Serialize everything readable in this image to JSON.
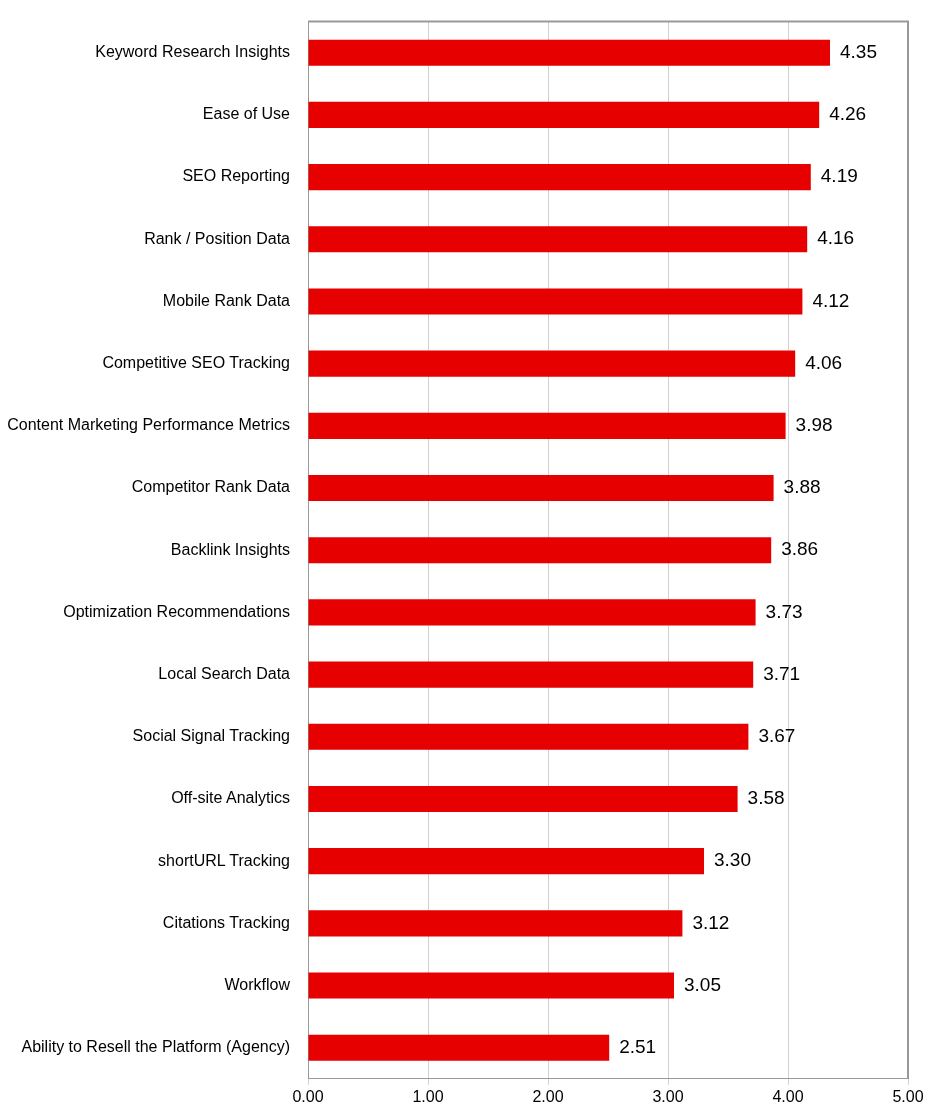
{
  "chart_data": {
    "type": "bar",
    "orientation": "horizontal",
    "categories": [
      "Keyword Research Insights",
      "Ease of Use",
      "SEO Reporting",
      "Rank / Position Data",
      "Mobile Rank Data",
      "Competitive SEO Tracking",
      "Content Marketing Performance Metrics",
      "Competitor Rank Data",
      "Backlink Insights",
      "Optimization Recommendations",
      "Local Search Data",
      "Social Signal Tracking",
      "Off-site Analytics",
      "shortURL Tracking",
      "Citations Tracking",
      "Workflow",
      "Ability to Resell the Platform (Agency)"
    ],
    "values": [
      4.35,
      4.26,
      4.19,
      4.16,
      4.12,
      4.06,
      3.98,
      3.88,
      3.86,
      3.73,
      3.71,
      3.67,
      3.58,
      3.3,
      3.12,
      3.05,
      2.51
    ],
    "value_labels": [
      "4.35",
      "4.26",
      "4.19",
      "4.16",
      "4.12",
      "4.06",
      "3.98",
      "3.88",
      "3.86",
      "3.73",
      "3.71",
      "3.67",
      "3.58",
      "3.30",
      "3.12",
      "3.05",
      "2.51"
    ],
    "color": "#e60000",
    "xlim": [
      0,
      5
    ],
    "xticks": [
      {
        "value": 0,
        "label": "0.00"
      },
      {
        "value": 1,
        "label": "1.00"
      },
      {
        "value": 2,
        "label": "2.00"
      },
      {
        "value": 3,
        "label": "3.00"
      },
      {
        "value": 4,
        "label": "4.00"
      },
      {
        "value": 5,
        "label": "5.00"
      }
    ],
    "grid": "x"
  }
}
